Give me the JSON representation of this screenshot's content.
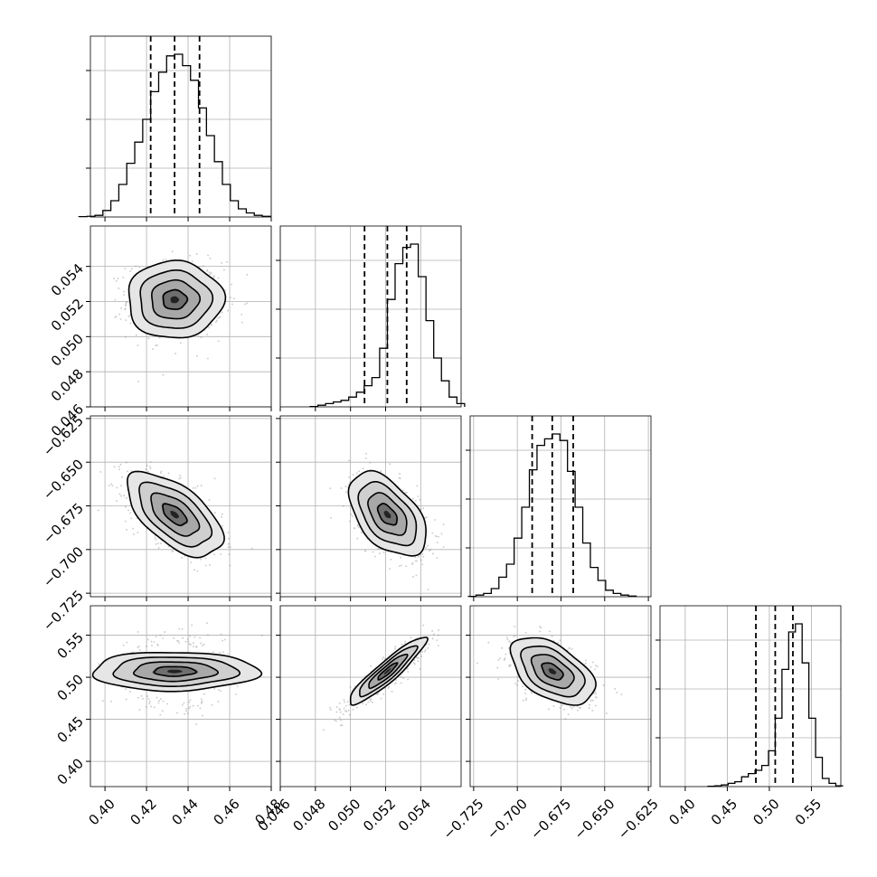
{
  "chart_data": {
    "type": "corner",
    "params": [
      {
        "range": [
          0.393,
          0.48
        ],
        "ticks": [
          0.4,
          0.42,
          0.44,
          0.46,
          0.48
        ],
        "tick_labels": [
          "0.40",
          "0.42",
          "0.44",
          "0.46",
          "0.48"
        ],
        "mean": 0.4335,
        "sigma": 0.0115,
        "quantiles": [
          0.422,
          0.4335,
          0.4455
        ]
      },
      {
        "range": [
          0.046,
          0.0563
        ],
        "ticks": [
          0.046,
          0.048,
          0.05,
          0.052,
          0.054
        ],
        "tick_labels": [
          "0.046",
          "0.048",
          "0.050",
          "0.052",
          "0.054"
        ],
        "mean": 0.0521,
        "sigma": 0.0011,
        "quantiles": [
          0.0508,
          0.0521,
          0.0532
        ]
      },
      {
        "range": [
          -0.727,
          -0.6235
        ],
        "ticks": [
          -0.725,
          -0.7,
          -0.675,
          -0.65,
          -0.625
        ],
        "tick_labels": [
          "−0.725",
          "−0.700",
          "−0.675",
          "−0.650",
          "−0.625"
        ],
        "mean": -0.68,
        "sigma": 0.012,
        "quantiles": [
          -0.6915,
          -0.68,
          -0.668
        ]
      },
      {
        "range": [
          0.37,
          0.585
        ],
        "ticks": [
          0.4,
          0.45,
          0.5,
          0.55
        ],
        "tick_labels": [
          "0.40",
          "0.45",
          "0.50",
          "0.55"
        ],
        "mean": 0.507,
        "sigma": 0.02,
        "quantiles": [
          0.484,
          0.507,
          0.528
        ]
      }
    ],
    "correlations": [
      [
        0,
        1,
        0.0
      ],
      [
        0,
        2,
        -0.6
      ],
      [
        0,
        3,
        0.0
      ],
      [
        1,
        2,
        -0.5
      ],
      [
        1,
        3,
        0.92
      ],
      [
        2,
        3,
        -0.5
      ]
    ],
    "histograms": [
      [
        0.002,
        0.004,
        0.01,
        0.04,
        0.1,
        0.2,
        0.33,
        0.46,
        0.6,
        0.77,
        0.89,
        0.99,
        1.0,
        0.93,
        0.84,
        0.67,
        0.5,
        0.34,
        0.2,
        0.1,
        0.05,
        0.025,
        0.01,
        0.004
      ],
      [
        0.002,
        0.01,
        0.02,
        0.03,
        0.04,
        0.06,
        0.09,
        0.13,
        0.18,
        0.36,
        0.66,
        0.88,
        0.98,
        1.0,
        0.8,
        0.53,
        0.3,
        0.16,
        0.06,
        0.02
      ],
      [
        0.002,
        0.01,
        0.02,
        0.05,
        0.12,
        0.2,
        0.36,
        0.55,
        0.78,
        0.93,
        0.97,
        1.0,
        0.96,
        0.77,
        0.55,
        0.33,
        0.18,
        0.1,
        0.04,
        0.02,
        0.01,
        0.004
      ],
      [
        0.002,
        0.005,
        0.01,
        0.02,
        0.03,
        0.06,
        0.08,
        0.1,
        0.13,
        0.22,
        0.42,
        0.72,
        0.95,
        1.0,
        0.76,
        0.42,
        0.18,
        0.05,
        0.02,
        0.005
      ]
    ],
    "contour_levels_sigma": [
      0.5,
      1.0,
      1.5,
      2.0
    ],
    "grid": true,
    "title": "",
    "xlabel": "",
    "ylabel": ""
  }
}
